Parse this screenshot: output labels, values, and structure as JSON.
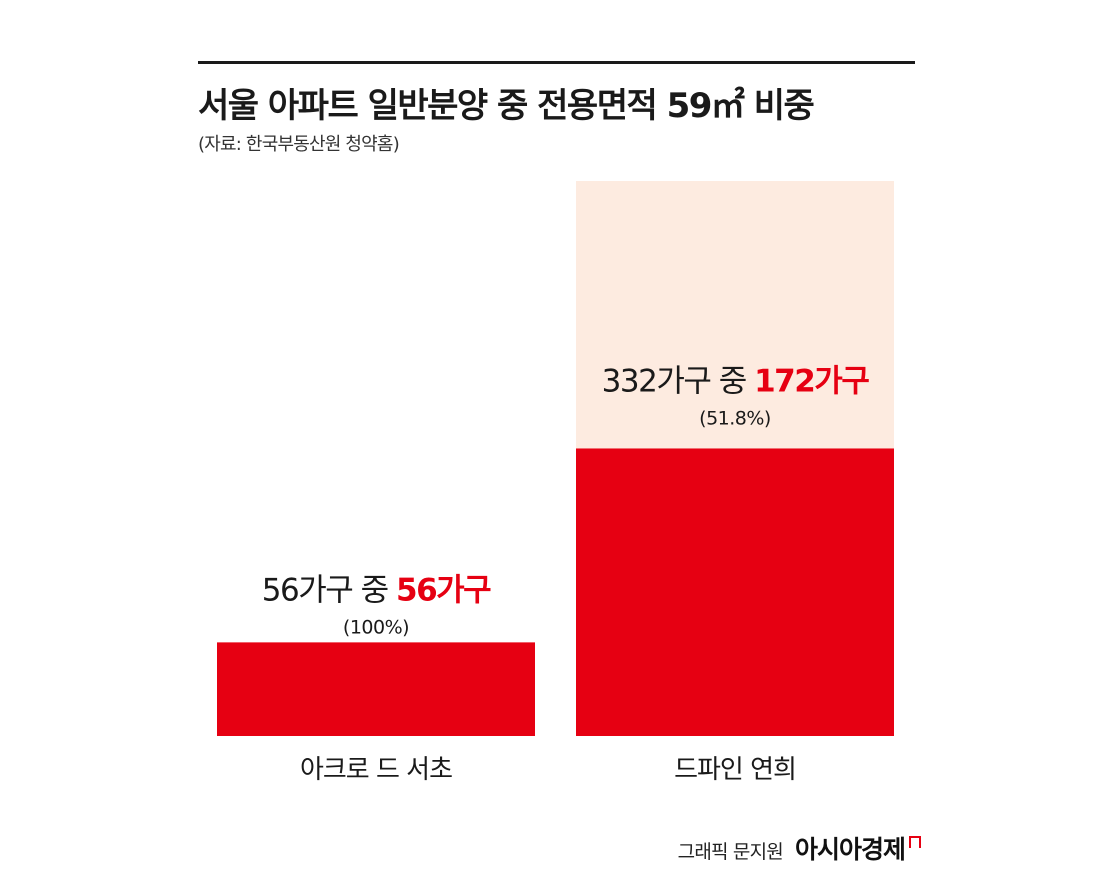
{
  "title": "서울 아파트 일반분양 중 전용면적 59㎡ 비중",
  "source": "(자료: 한국부동산원 청약홈)",
  "credit": {
    "text": "그래픽 문지원",
    "brand": "아시아경제"
  },
  "colors": {
    "highlight": "#e60012",
    "total_fill": "#fdebe0",
    "text": "#1a1a1a"
  },
  "chart_data": {
    "type": "bar",
    "categories": [
      "아크로 드 서초",
      "드파인 연희"
    ],
    "series": [
      {
        "values": [
          56,
          332
        ]
      },
      {
        "values": [
          56,
          172
        ]
      }
    ],
    "labels": [
      {
        "total_text": "56가구 중 ",
        "part_text": "56가구",
        "pct_text": "(100%)"
      },
      {
        "total_text": "332가구 중 ",
        "part_text": "172가구",
        "pct_text": "(51.8%)"
      }
    ],
    "ylim": [
      0,
      332
    ]
  }
}
